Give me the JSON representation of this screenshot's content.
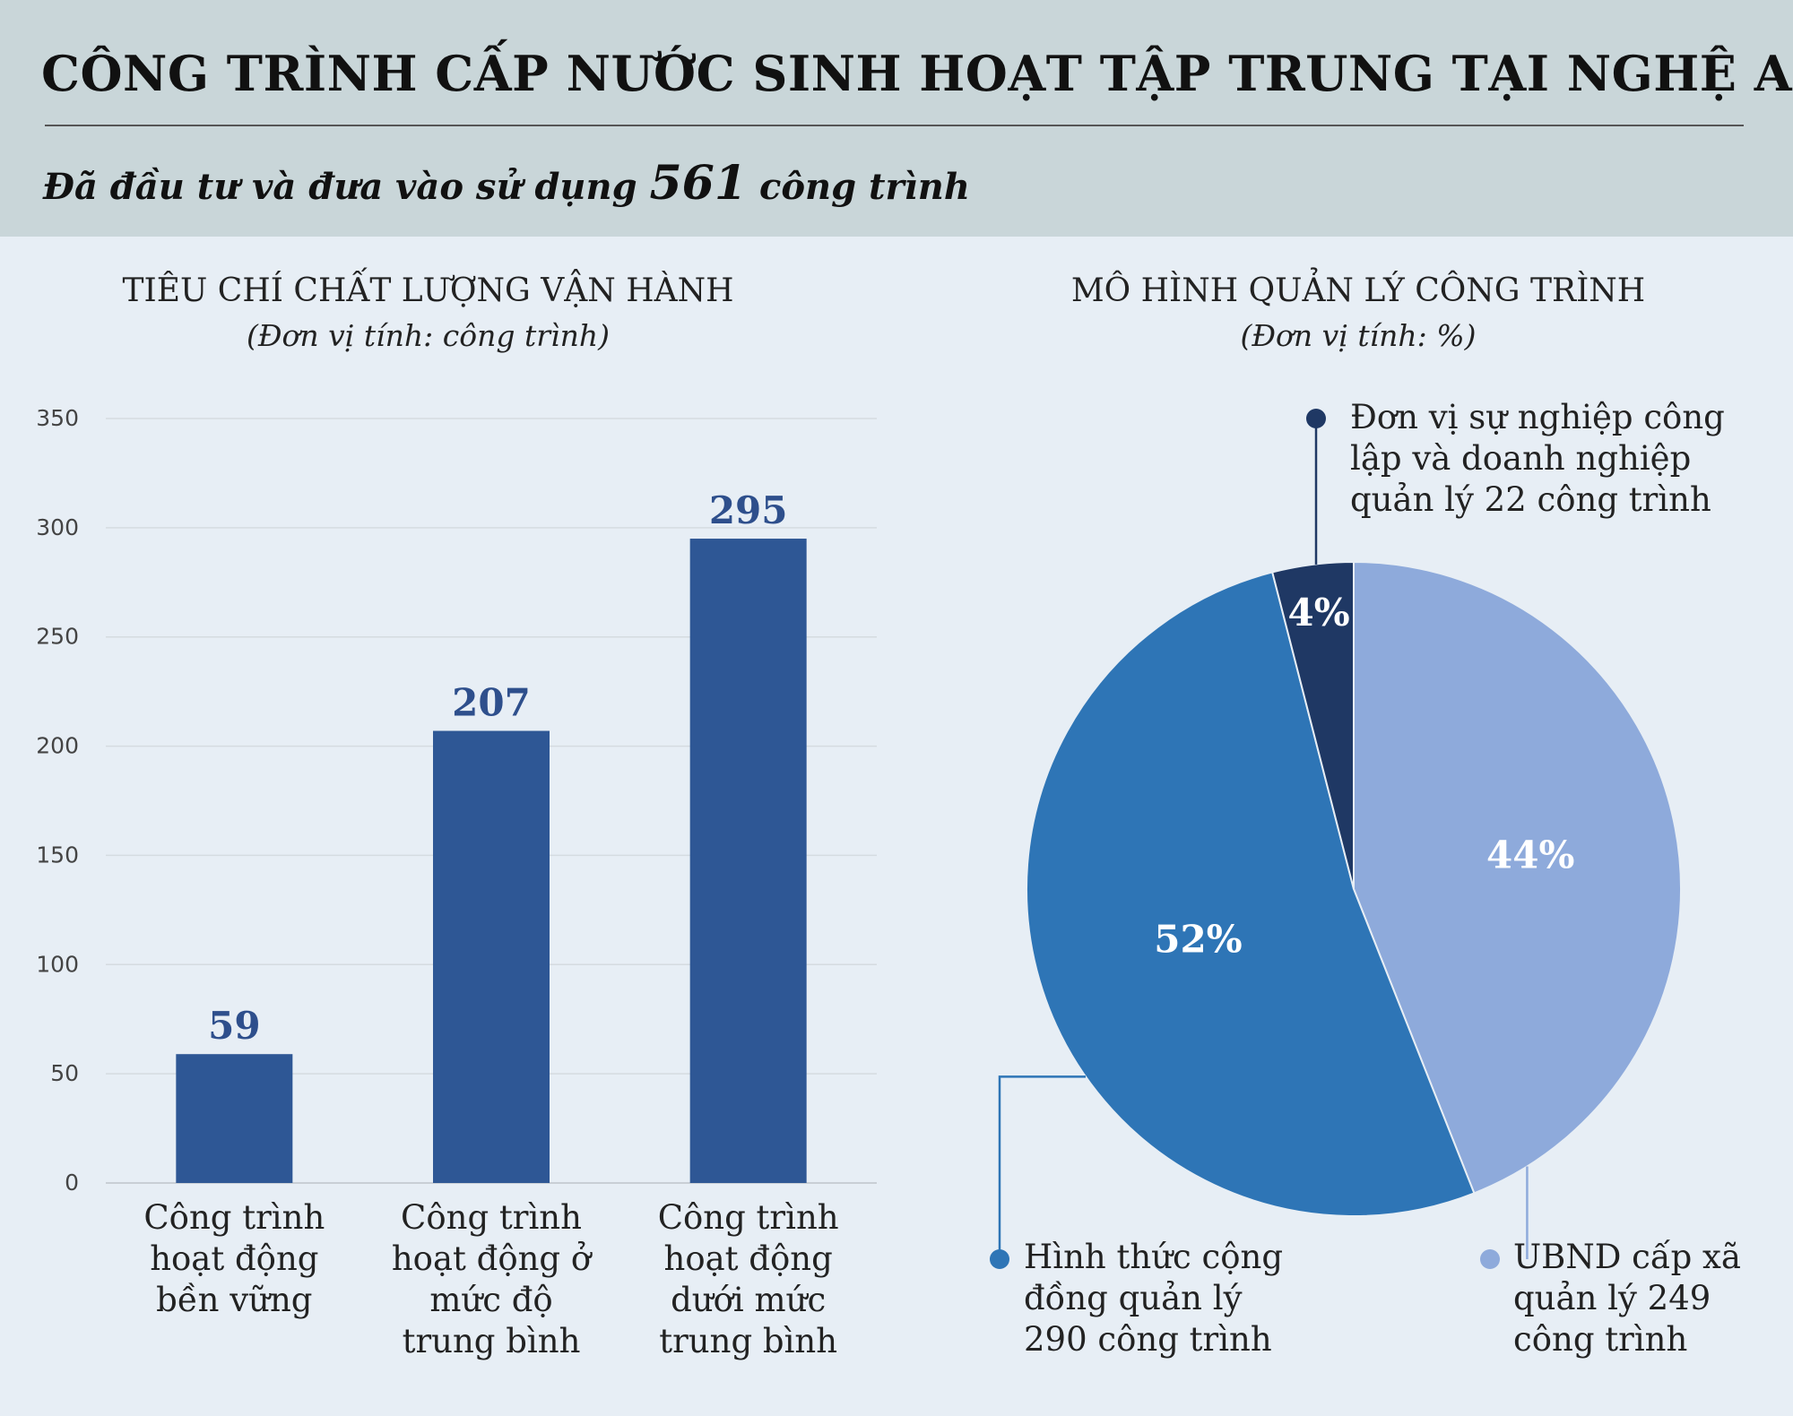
{
  "header": {
    "title": "CÔNG TRÌNH CẤP NƯỚC SINH HOẠT TẬP TRUNG TẠI NGHỆ AN",
    "subtitle_prefix": "Đã đầu tư và đưa vào sử dụng",
    "subtitle_number": "561",
    "subtitle_suffix": "công trình"
  },
  "chart_data": [
    {
      "type": "bar",
      "title": "TIÊU CHÍ CHẤT LƯỢNG VẬN HÀNH",
      "unit": "(Đơn vị tính: công trình)",
      "categories": [
        "Công trình hoạt động bền vững",
        "Công trình hoạt động ở mức độ trung bình",
        "Công trình hoạt động dưới mức trung bình"
      ],
      "category_lines": [
        [
          "Công trình",
          "hoạt động",
          "bền vững"
        ],
        [
          "Công trình",
          "hoạt động ở",
          "mức độ",
          "trung bình"
        ],
        [
          "Công trình",
          "hoạt động",
          "dưới mức",
          "trung bình"
        ]
      ],
      "values": [
        59,
        207,
        295
      ],
      "value_labels": [
        "59",
        "207",
        "295"
      ],
      "ylim": [
        0,
        350
      ],
      "yticks": [
        0,
        50,
        100,
        150,
        200,
        250,
        300,
        350
      ],
      "grid": true,
      "bar_color": "#2e5795"
    },
    {
      "type": "pie",
      "title": "MÔ HÌNH QUẢN LÝ CÔNG TRÌNH",
      "unit": "(Đơn vị tính: %)",
      "slices": [
        {
          "value": 44,
          "label": "44%",
          "color": "#8eaadb",
          "legend_lines": [
            "UBND cấp xã",
            "quản lý 249",
            "công trình"
          ]
        },
        {
          "value": 52,
          "label": "52%",
          "color": "#2e75b6",
          "legend_lines": [
            "Hình thức cộng",
            "đồng quản lý",
            "290 công trình"
          ]
        },
        {
          "value": 4,
          "label": "4%",
          "color": "#1f3864",
          "legend_lines": [
            "Đơn vị sự nghiệp công",
            "lập và doanh nghiệp",
            "quản lý 22 công trình"
          ]
        }
      ]
    }
  ]
}
